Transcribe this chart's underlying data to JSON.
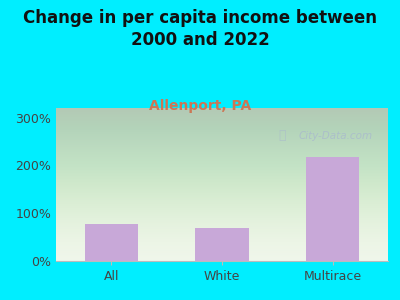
{
  "title": "Change in per capita income between\n2000 and 2022",
  "subtitle": "Allenport, PA",
  "categories": [
    "All",
    "White",
    "Multirace"
  ],
  "values": [
    78,
    70,
    218
  ],
  "bar_color": "#c8a8d8",
  "title_fontsize": 12,
  "title_color": "#111111",
  "subtitle_fontsize": 10,
  "subtitle_color": "#cc7755",
  "tick_label_fontsize": 9,
  "ytick_label_color": "#444444",
  "xtick_label_color": "#444444",
  "ylim": [
    0,
    320
  ],
  "yticks": [
    0,
    100,
    200,
    300
  ],
  "ytick_labels": [
    "0%",
    "100%",
    "200%",
    "300%"
  ],
  "background_outer": "#00eeff",
  "plot_bg_color": "#eef5e8",
  "watermark": "City-Data.com",
  "watermark_color": "#aabbcc",
  "xaxis_line_color": "#bbbbbb"
}
